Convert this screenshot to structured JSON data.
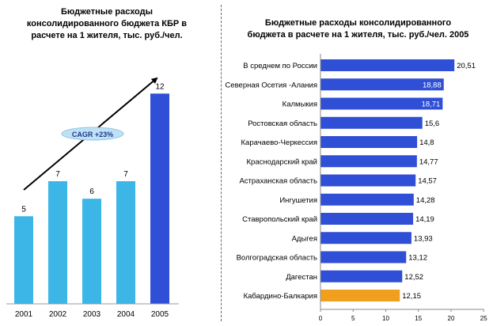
{
  "chart_data": [
    {
      "type": "bar",
      "title_lines": [
        "Бюджетные расходы",
        "консолидированного бюджета КБР в",
        "расчете на 1 жителя, тыс. руб./чел."
      ],
      "categories": [
        "2001",
        "2002",
        "2003",
        "2004",
        "2005"
      ],
      "values": [
        5,
        7,
        6,
        7,
        12
      ],
      "data_labels": [
        "5",
        "7",
        "6",
        "7",
        "12"
      ],
      "ylim": [
        0,
        14
      ],
      "grid": false,
      "annotation": "CAGR +23%",
      "colors": {
        "bar": "#3cb6e6",
        "highlight": "#2f4fd6",
        "annotation_fill": "#bfe1f5",
        "annotation_text": "#1f3a8a"
      },
      "highlight_index": 4
    },
    {
      "type": "bar",
      "orientation": "horizontal",
      "title_lines": [
        "Бюджетные расходы консолидированного",
        "бюджета в расчете на 1 жителя, тыс. руб./чел. 2005"
      ],
      "categories": [
        "В среднем по России",
        "Северная Осетия -Алания",
        "Калмыкия",
        "Ростовская область",
        "Карачаево-Черкессия",
        "Краснодарский край",
        "Астраханская область",
        "Ингушетия",
        "Ставропольский край",
        "Адыгея",
        "Волгоградская  область",
        "Дагестан",
        "Кабардино-Балкария"
      ],
      "values": [
        20.51,
        18.88,
        18.71,
        15.6,
        14.8,
        14.77,
        14.57,
        14.28,
        14.19,
        13.93,
        13.12,
        12.52,
        12.15
      ],
      "data_labels": [
        "20,51",
        "18,88",
        "18,71",
        "15,6",
        "14,8",
        "14,77",
        "14,57",
        "14,28",
        "14,19",
        "13,93",
        "13,12",
        "12,52",
        "12,15"
      ],
      "inside_label_indices": [
        1,
        2
      ],
      "x_ticks": [
        "0",
        "5",
        "10",
        "15",
        "20",
        "25"
      ],
      "xlim": [
        0,
        25
      ],
      "grid": false,
      "colors": {
        "bar": "#2f4fd6",
        "highlight": "#f0a01e"
      },
      "highlight_index": 12
    }
  ]
}
